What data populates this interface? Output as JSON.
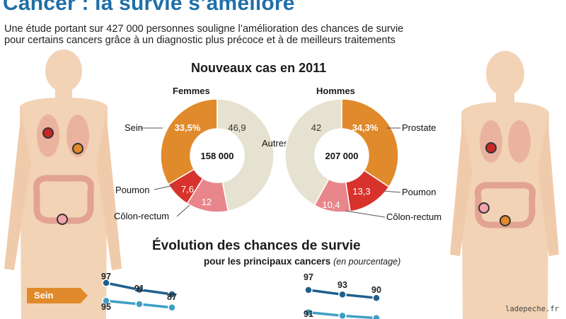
{
  "header": {
    "title": "Cancer : la survie s’améliore",
    "subtitle_line1": "Une étude portant sur 427 000 personnes souligne l’amélioration des chances de survie",
    "subtitle_line2": "pour certains cancers grâce à un diagnostic plus précoce et à de meilleurs traitements"
  },
  "section_new_cases": {
    "title": "Nouveaux cas en 2011"
  },
  "section_survival": {
    "title": "Évolution des chances de survie",
    "subtitle": "pour les principaux cancers",
    "unit": "(en pourcentage)",
    "badge": "Sein"
  },
  "credit": "ladepeche.fr",
  "colors": {
    "title_blue": "#1f6fa8",
    "orange": "#e08a2c",
    "red": "#d8322c",
    "pink": "#e8868c",
    "beige": "#e6e2d2",
    "line_blue": "#1f5f8c",
    "line_light": "#3f9fc4",
    "skin": "#f3d3b5"
  },
  "chart_data": [
    {
      "type": "pie",
      "group": "Femmes",
      "total": "158 000",
      "slices": [
        {
          "label": "Sein",
          "value": 33.5,
          "value_label": "33,5%",
          "color": "#e08a2c"
        },
        {
          "label": "Poumon",
          "value": 7.6,
          "value_label": "7,6",
          "color": "#d8322c"
        },
        {
          "label": "Côlon-rectum",
          "value": 12,
          "value_label": "12",
          "color": "#e8868c"
        },
        {
          "label": "Autres",
          "value": 46.9,
          "value_label": "46,9",
          "color": "#e6e2d2"
        }
      ]
    },
    {
      "type": "pie",
      "group": "Hommes",
      "total": "207 000",
      "slices": [
        {
          "label": "Prostate",
          "value": 34.3,
          "value_label": "34,3%",
          "color": "#e08a2c"
        },
        {
          "label": "Poumon",
          "value": 13.3,
          "value_label": "13,3",
          "color": "#d8322c"
        },
        {
          "label": "Côlon-rectum",
          "value": 10.4,
          "value_label": "10,4",
          "color": "#e8868c"
        },
        {
          "label": "Autres",
          "value": 42,
          "value_label": "42",
          "color": "#e6e2d2"
        }
      ]
    },
    {
      "type": "line",
      "title": "Sein",
      "series": [
        {
          "values": [
            97,
            91,
            87
          ],
          "color": "#1f5f8c"
        },
        {
          "values": [
            95,
            92,
            89
          ],
          "color": "#3f9fc4"
        }
      ],
      "value_labels": [
        "97",
        "91",
        "87",
        "95"
      ]
    },
    {
      "type": "line",
      "series": [
        {
          "values": [
            97,
            93,
            90
          ],
          "color": "#1f5f8c"
        },
        {
          "values": [
            91,
            88,
            86
          ],
          "color": "#3f9fc4"
        }
      ],
      "value_labels": [
        "97",
        "93",
        "90",
        "91"
      ]
    }
  ]
}
